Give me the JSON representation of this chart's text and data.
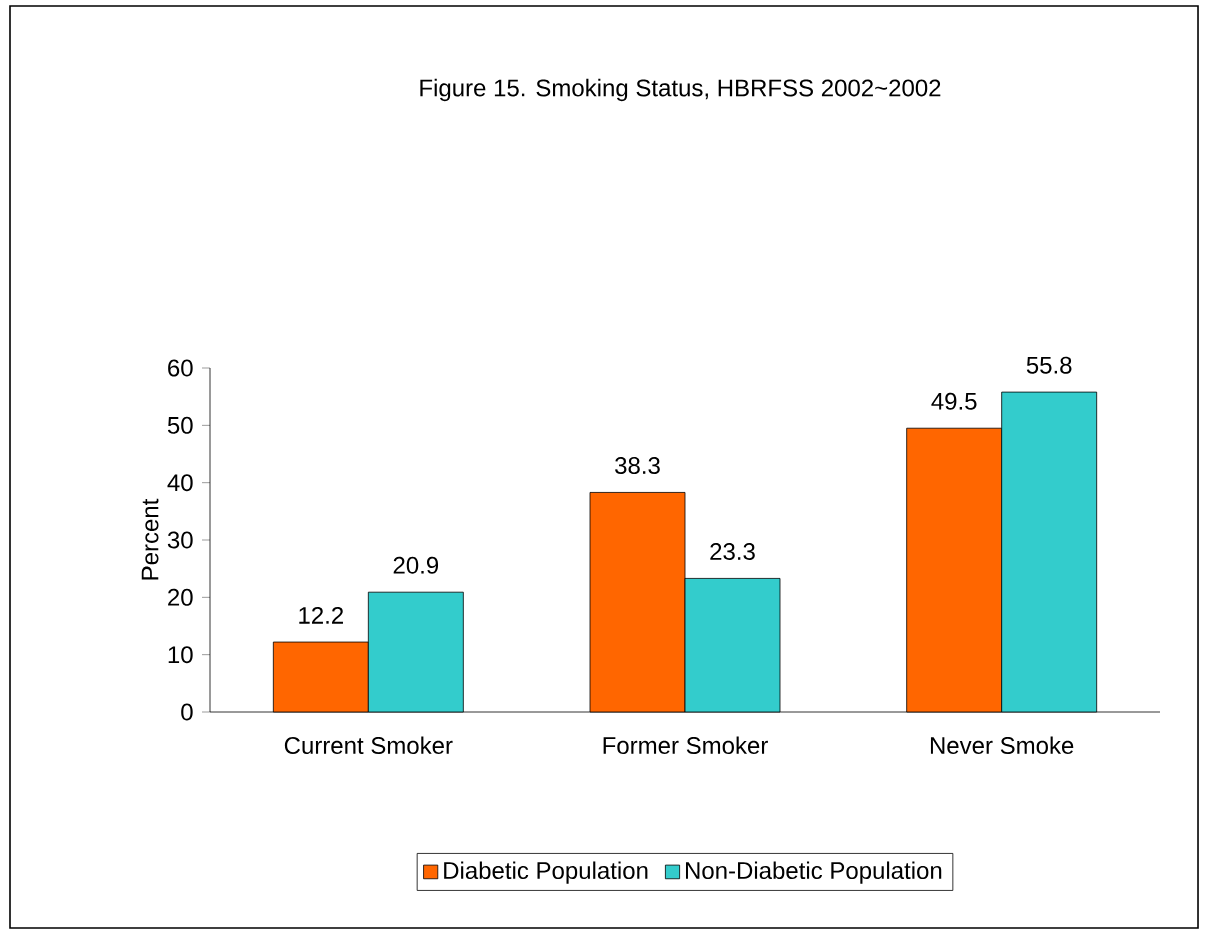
{
  "chart_data": {
    "type": "bar",
    "title": "Figure 15.  Smoking Status, HBRFSS 2002~2002",
    "ylabel": "Percent",
    "categories": [
      "Current Smoker",
      "Former Smoker",
      "Never Smoke"
    ],
    "series": [
      {
        "name": "Diabetic Population",
        "color": "#ff6600",
        "values": [
          12.2,
          38.3,
          49.5
        ]
      },
      {
        "name": "Non-Diabetic Population",
        "color": "#33cccc",
        "values": [
          20.9,
          23.3,
          55.8
        ]
      }
    ],
    "ylim": [
      0,
      60
    ],
    "yticks": [
      0,
      10,
      20,
      30,
      40,
      50,
      60
    ],
    "data_labels": true,
    "legend": "bottom",
    "grid": false
  }
}
